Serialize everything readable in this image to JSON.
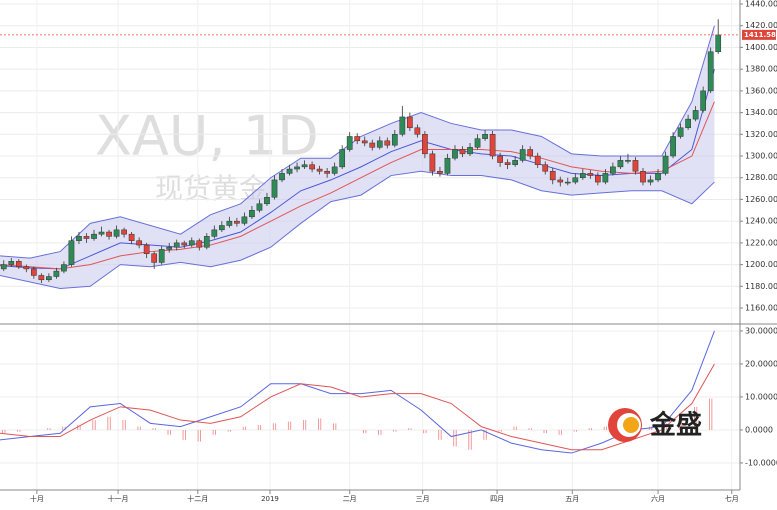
{
  "watermark": {
    "symbol": "XAU, 1D",
    "name": "现货黄金"
  },
  "logo": "金盛",
  "chart_data": [
    {
      "type": "candlestick",
      "up_color": "#2e8b57",
      "down_color": "#e0443a",
      "grid": true,
      "xlim": [
        0,
        98.4
      ],
      "xticks": [
        {
          "value": 4.9,
          "label": "十月"
        },
        {
          "value": 15.7,
          "label": "十一月"
        },
        {
          "value": 26.3,
          "label": "十二月"
        },
        {
          "value": 35.9,
          "label": "2019"
        },
        {
          "value": 46.5,
          "label": "二月"
        },
        {
          "value": 56.2,
          "label": "三月"
        },
        {
          "value": 66.1,
          "label": "四月"
        },
        {
          "value": 76.1,
          "label": "五月"
        },
        {
          "value": 87.5,
          "label": "六月"
        },
        {
          "value": 97.3,
          "label": "七月"
        }
      ],
      "ylim": [
        1146.2,
        1443.7
      ],
      "yticks": [
        {
          "value": 1160,
          "label": "1160.00"
        },
        {
          "value": 1180,
          "label": "1180.00"
        },
        {
          "value": 1200,
          "label": "1200.00"
        },
        {
          "value": 1220,
          "label": "1220.00"
        },
        {
          "value": 1240,
          "label": "1240.00"
        },
        {
          "value": 1260,
          "label": "1260.00"
        },
        {
          "value": 1280,
          "label": "1280.00"
        },
        {
          "value": 1300,
          "label": "1300.00"
        },
        {
          "value": 1320,
          "label": "1320.00"
        },
        {
          "value": 1340,
          "label": "1340.00"
        },
        {
          "value": 1360,
          "label": "1360.00"
        },
        {
          "value": 1380,
          "label": "1380.00"
        },
        {
          "value": 1400,
          "label": "1400.00"
        },
        {
          "value": 1420,
          "label": "1420.00"
        },
        {
          "value": 1440,
          "label": "1440.00"
        }
      ],
      "candles": [
        [
          1196,
          1204,
          1194,
          1200
        ],
        [
          1200,
          1206,
          1198,
          1203
        ],
        [
          1203,
          1205,
          1196,
          1198
        ],
        [
          1198,
          1200,
          1193,
          1196
        ],
        [
          1196,
          1198,
          1187,
          1190
        ],
        [
          1190,
          1192,
          1183,
          1186
        ],
        [
          1186,
          1192,
          1184,
          1189
        ],
        [
          1189,
          1197,
          1187,
          1194
        ],
        [
          1194,
          1203,
          1192,
          1200
        ],
        [
          1200,
          1226,
          1198,
          1222
        ],
        [
          1222,
          1230,
          1219,
          1226
        ],
        [
          1226,
          1229,
          1220,
          1224
        ],
        [
          1224,
          1232,
          1222,
          1228
        ],
        [
          1228,
          1235,
          1226,
          1230
        ],
        [
          1230,
          1232,
          1223,
          1226
        ],
        [
          1226,
          1236,
          1224,
          1232
        ],
        [
          1232,
          1234,
          1225,
          1228
        ],
        [
          1228,
          1230,
          1219,
          1222
        ],
        [
          1222,
          1225,
          1215,
          1218
        ],
        [
          1218,
          1220,
          1206,
          1210
        ],
        [
          1210,
          1212,
          1196,
          1202
        ],
        [
          1202,
          1217,
          1200,
          1214
        ],
        [
          1214,
          1220,
          1211,
          1216
        ],
        [
          1216,
          1223,
          1213,
          1220
        ],
        [
          1220,
          1222,
          1215,
          1218
        ],
        [
          1218,
          1225,
          1216,
          1222
        ],
        [
          1222,
          1224,
          1213,
          1216
        ],
        [
          1216,
          1229,
          1214,
          1226
        ],
        [
          1226,
          1236,
          1224,
          1232
        ],
        [
          1232,
          1240,
          1230,
          1236
        ],
        [
          1236,
          1244,
          1234,
          1240
        ],
        [
          1240,
          1243,
          1235,
          1238
        ],
        [
          1238,
          1248,
          1236,
          1244
        ],
        [
          1244,
          1254,
          1242,
          1250
        ],
        [
          1250,
          1260,
          1248,
          1256
        ],
        [
          1256,
          1266,
          1254,
          1262
        ],
        [
          1262,
          1282,
          1260,
          1278
        ],
        [
          1278,
          1288,
          1276,
          1284
        ],
        [
          1284,
          1292,
          1282,
          1288
        ],
        [
          1288,
          1294,
          1285,
          1290
        ],
        [
          1290,
          1296,
          1288,
          1292
        ],
        [
          1292,
          1295,
          1285,
          1288
        ],
        [
          1288,
          1291,
          1283,
          1286
        ],
        [
          1286,
          1289,
          1280,
          1284
        ],
        [
          1284,
          1294,
          1282,
          1290
        ],
        [
          1290,
          1310,
          1288,
          1306
        ],
        [
          1306,
          1322,
          1304,
          1318
        ],
        [
          1318,
          1321,
          1311,
          1314
        ],
        [
          1314,
          1318,
          1309,
          1312
        ],
        [
          1312,
          1315,
          1305,
          1308
        ],
        [
          1308,
          1318,
          1306,
          1314
        ],
        [
          1314,
          1317,
          1307,
          1310
        ],
        [
          1310,
          1324,
          1308,
          1320
        ],
        [
          1320,
          1346,
          1318,
          1336
        ],
        [
          1336,
          1340,
          1323,
          1326
        ],
        [
          1326,
          1329,
          1317,
          1320
        ],
        [
          1320,
          1323,
          1298,
          1302
        ],
        [
          1302,
          1305,
          1282,
          1286
        ],
        [
          1286,
          1290,
          1281,
          1284
        ],
        [
          1284,
          1302,
          1282,
          1298
        ],
        [
          1298,
          1310,
          1296,
          1306
        ],
        [
          1306,
          1309,
          1299,
          1302
        ],
        [
          1302,
          1312,
          1300,
          1308
        ],
        [
          1308,
          1320,
          1306,
          1316
        ],
        [
          1316,
          1324,
          1314,
          1320
        ],
        [
          1320,
          1323,
          1297,
          1300
        ],
        [
          1300,
          1303,
          1290,
          1294
        ],
        [
          1294,
          1297,
          1288,
          1292
        ],
        [
          1292,
          1300,
          1290,
          1296
        ],
        [
          1296,
          1310,
          1294,
          1306
        ],
        [
          1306,
          1309,
          1297,
          1300
        ],
        [
          1300,
          1303,
          1289,
          1292
        ],
        [
          1292,
          1295,
          1283,
          1286
        ],
        [
          1286,
          1289,
          1274,
          1278
        ],
        [
          1278,
          1281,
          1272,
          1276
        ],
        [
          1276,
          1280,
          1273,
          1276
        ],
        [
          1276,
          1284,
          1274,
          1280
        ],
        [
          1280,
          1288,
          1278,
          1284
        ],
        [
          1284,
          1287,
          1279,
          1282
        ],
        [
          1282,
          1285,
          1273,
          1276
        ],
        [
          1276,
          1288,
          1274,
          1284
        ],
        [
          1284,
          1294,
          1282,
          1290
        ],
        [
          1290,
          1300,
          1288,
          1296
        ],
        [
          1296,
          1302,
          1293,
          1296
        ],
        [
          1296,
          1299,
          1283,
          1286
        ],
        [
          1286,
          1289,
          1273,
          1276
        ],
        [
          1276,
          1282,
          1273,
          1278
        ],
        [
          1278,
          1288,
          1276,
          1284
        ],
        [
          1284,
          1304,
          1282,
          1300
        ],
        [
          1300,
          1322,
          1298,
          1318
        ],
        [
          1318,
          1330,
          1316,
          1326
        ],
        [
          1326,
          1338,
          1324,
          1334
        ],
        [
          1334,
          1346,
          1332,
          1342
        ],
        [
          1342,
          1364,
          1340,
          1360
        ],
        [
          1360,
          1400,
          1358,
          1396
        ],
        [
          1396,
          1426,
          1394,
          1411.58
        ]
      ],
      "last_price": {
        "value": 1411.58,
        "label": "1411.58",
        "color": "#e0443a"
      },
      "band_color": "#c9c9ec",
      "lines": [
        {
          "role": "upper",
          "color": "#6670d8",
          "x": [
            0,
            4,
            8,
            12,
            16,
            20,
            24,
            28,
            32,
            36,
            40,
            44,
            48,
            52,
            56,
            60,
            64,
            68,
            72,
            76,
            80,
            84,
            88,
            92,
            95
          ],
          "values": [
            1208,
            1206,
            1212,
            1238,
            1244,
            1236,
            1228,
            1246,
            1256,
            1280,
            1298,
            1298,
            1318,
            1330,
            1340,
            1330,
            1324,
            1324,
            1318,
            1302,
            1300,
            1300,
            1300,
            1350,
            1420
          ]
        },
        {
          "role": "lower",
          "color": "#6670d8",
          "x": [
            0,
            4,
            8,
            12,
            16,
            20,
            24,
            28,
            32,
            36,
            40,
            44,
            48,
            52,
            56,
            60,
            64,
            68,
            72,
            76,
            80,
            84,
            88,
            92,
            95
          ],
          "values": [
            1190,
            1184,
            1178,
            1180,
            1200,
            1198,
            1202,
            1198,
            1204,
            1216,
            1238,
            1258,
            1264,
            1282,
            1286,
            1282,
            1282,
            1278,
            1268,
            1264,
            1266,
            1268,
            1268,
            1256,
            1276
          ]
        },
        {
          "role": "middle",
          "color": "#4a56d8",
          "x": [
            0,
            4,
            8,
            12,
            16,
            20,
            24,
            28,
            32,
            36,
            40,
            44,
            48,
            52,
            56,
            60,
            64,
            68,
            72,
            76,
            80,
            84,
            88,
            92,
            95
          ],
          "values": [
            1199,
            1197,
            1196,
            1208,
            1220,
            1218,
            1216,
            1222,
            1230,
            1248,
            1268,
            1278,
            1290,
            1304,
            1314,
            1306,
            1302,
            1300,
            1292,
            1284,
            1282,
            1284,
            1284,
            1306,
            1380
          ]
        },
        {
          "role": "ma",
          "color": "#e05555",
          "x": [
            0,
            4,
            8,
            12,
            16,
            20,
            24,
            28,
            32,
            36,
            40,
            44,
            48,
            52,
            56,
            60,
            64,
            68,
            72,
            76,
            80,
            84,
            88,
            92,
            95
          ],
          "values": [
            1200,
            1198,
            1196,
            1200,
            1208,
            1212,
            1214,
            1218,
            1226,
            1240,
            1254,
            1266,
            1280,
            1294,
            1306,
            1306,
            1306,
            1304,
            1298,
            1290,
            1286,
            1284,
            1286,
            1300,
            1350
          ]
        }
      ]
    },
    {
      "type": "macd",
      "xlim": [
        0,
        98.4
      ],
      "ylim": [
        -18.2,
        31.8
      ],
      "grid": true,
      "yticks": [
        {
          "value": 30,
          "label": "30.0000"
        },
        {
          "value": 20,
          "label": "20.0000"
        },
        {
          "value": 10,
          "label": "10.0000"
        },
        {
          "value": 0,
          "label": "0.0000"
        },
        {
          "value": -10,
          "label": "-10.0000"
        }
      ],
      "lines": [
        {
          "color": "#5a66e0",
          "x": [
            0,
            4,
            8,
            12,
            16,
            20,
            24,
            28,
            32,
            36,
            40,
            44,
            48,
            52,
            56,
            60,
            64,
            68,
            72,
            76,
            80,
            84,
            88,
            92,
            95
          ],
          "values": [
            -3,
            -2,
            -1,
            7,
            8,
            2,
            1,
            4,
            7,
            14,
            14,
            11,
            11,
            12,
            6,
            -2,
            0,
            -4,
            -6,
            -7,
            -4,
            0,
            1,
            12,
            30
          ]
        },
        {
          "color": "#e05555",
          "x": [
            0,
            4,
            8,
            12,
            16,
            20,
            24,
            28,
            32,
            36,
            40,
            44,
            48,
            52,
            56,
            60,
            64,
            68,
            72,
            76,
            80,
            84,
            88,
            92,
            95
          ],
          "values": [
            -1,
            -2,
            -2,
            3,
            7,
            6,
            3,
            2,
            4,
            10,
            14,
            13,
            10,
            11,
            11,
            8,
            1,
            -2,
            -4,
            -6,
            -6,
            -3,
            0,
            8,
            20
          ]
        }
      ],
      "histogram": {
        "color": "#f08080",
        "x": [
          0,
          2,
          4,
          6,
          8,
          10,
          12,
          14,
          16,
          18,
          20,
          22,
          24,
          26,
          28,
          30,
          32,
          34,
          36,
          38,
          40,
          42,
          44,
          46,
          48,
          50,
          52,
          54,
          56,
          58,
          60,
          62,
          64,
          66,
          68,
          70,
          72,
          74,
          76,
          78,
          80,
          82,
          84,
          86,
          88,
          90,
          92,
          94
        ],
        "values": [
          -1,
          -0.5,
          0,
          0.5,
          1,
          1.5,
          3,
          4,
          3,
          1,
          0.5,
          -1.5,
          -3,
          -3.5,
          -1.5,
          -0.5,
          1,
          1.5,
          2,
          2.5,
          3,
          3.5,
          2,
          0,
          -1,
          -1.5,
          -0.5,
          0.5,
          -1,
          -3,
          -5,
          -6,
          -3,
          -0.5,
          1,
          0.5,
          -1,
          -1.5,
          -0.5,
          0.5,
          1,
          1.5,
          2,
          1,
          2,
          4,
          7,
          9.5
        ]
      }
    }
  ]
}
